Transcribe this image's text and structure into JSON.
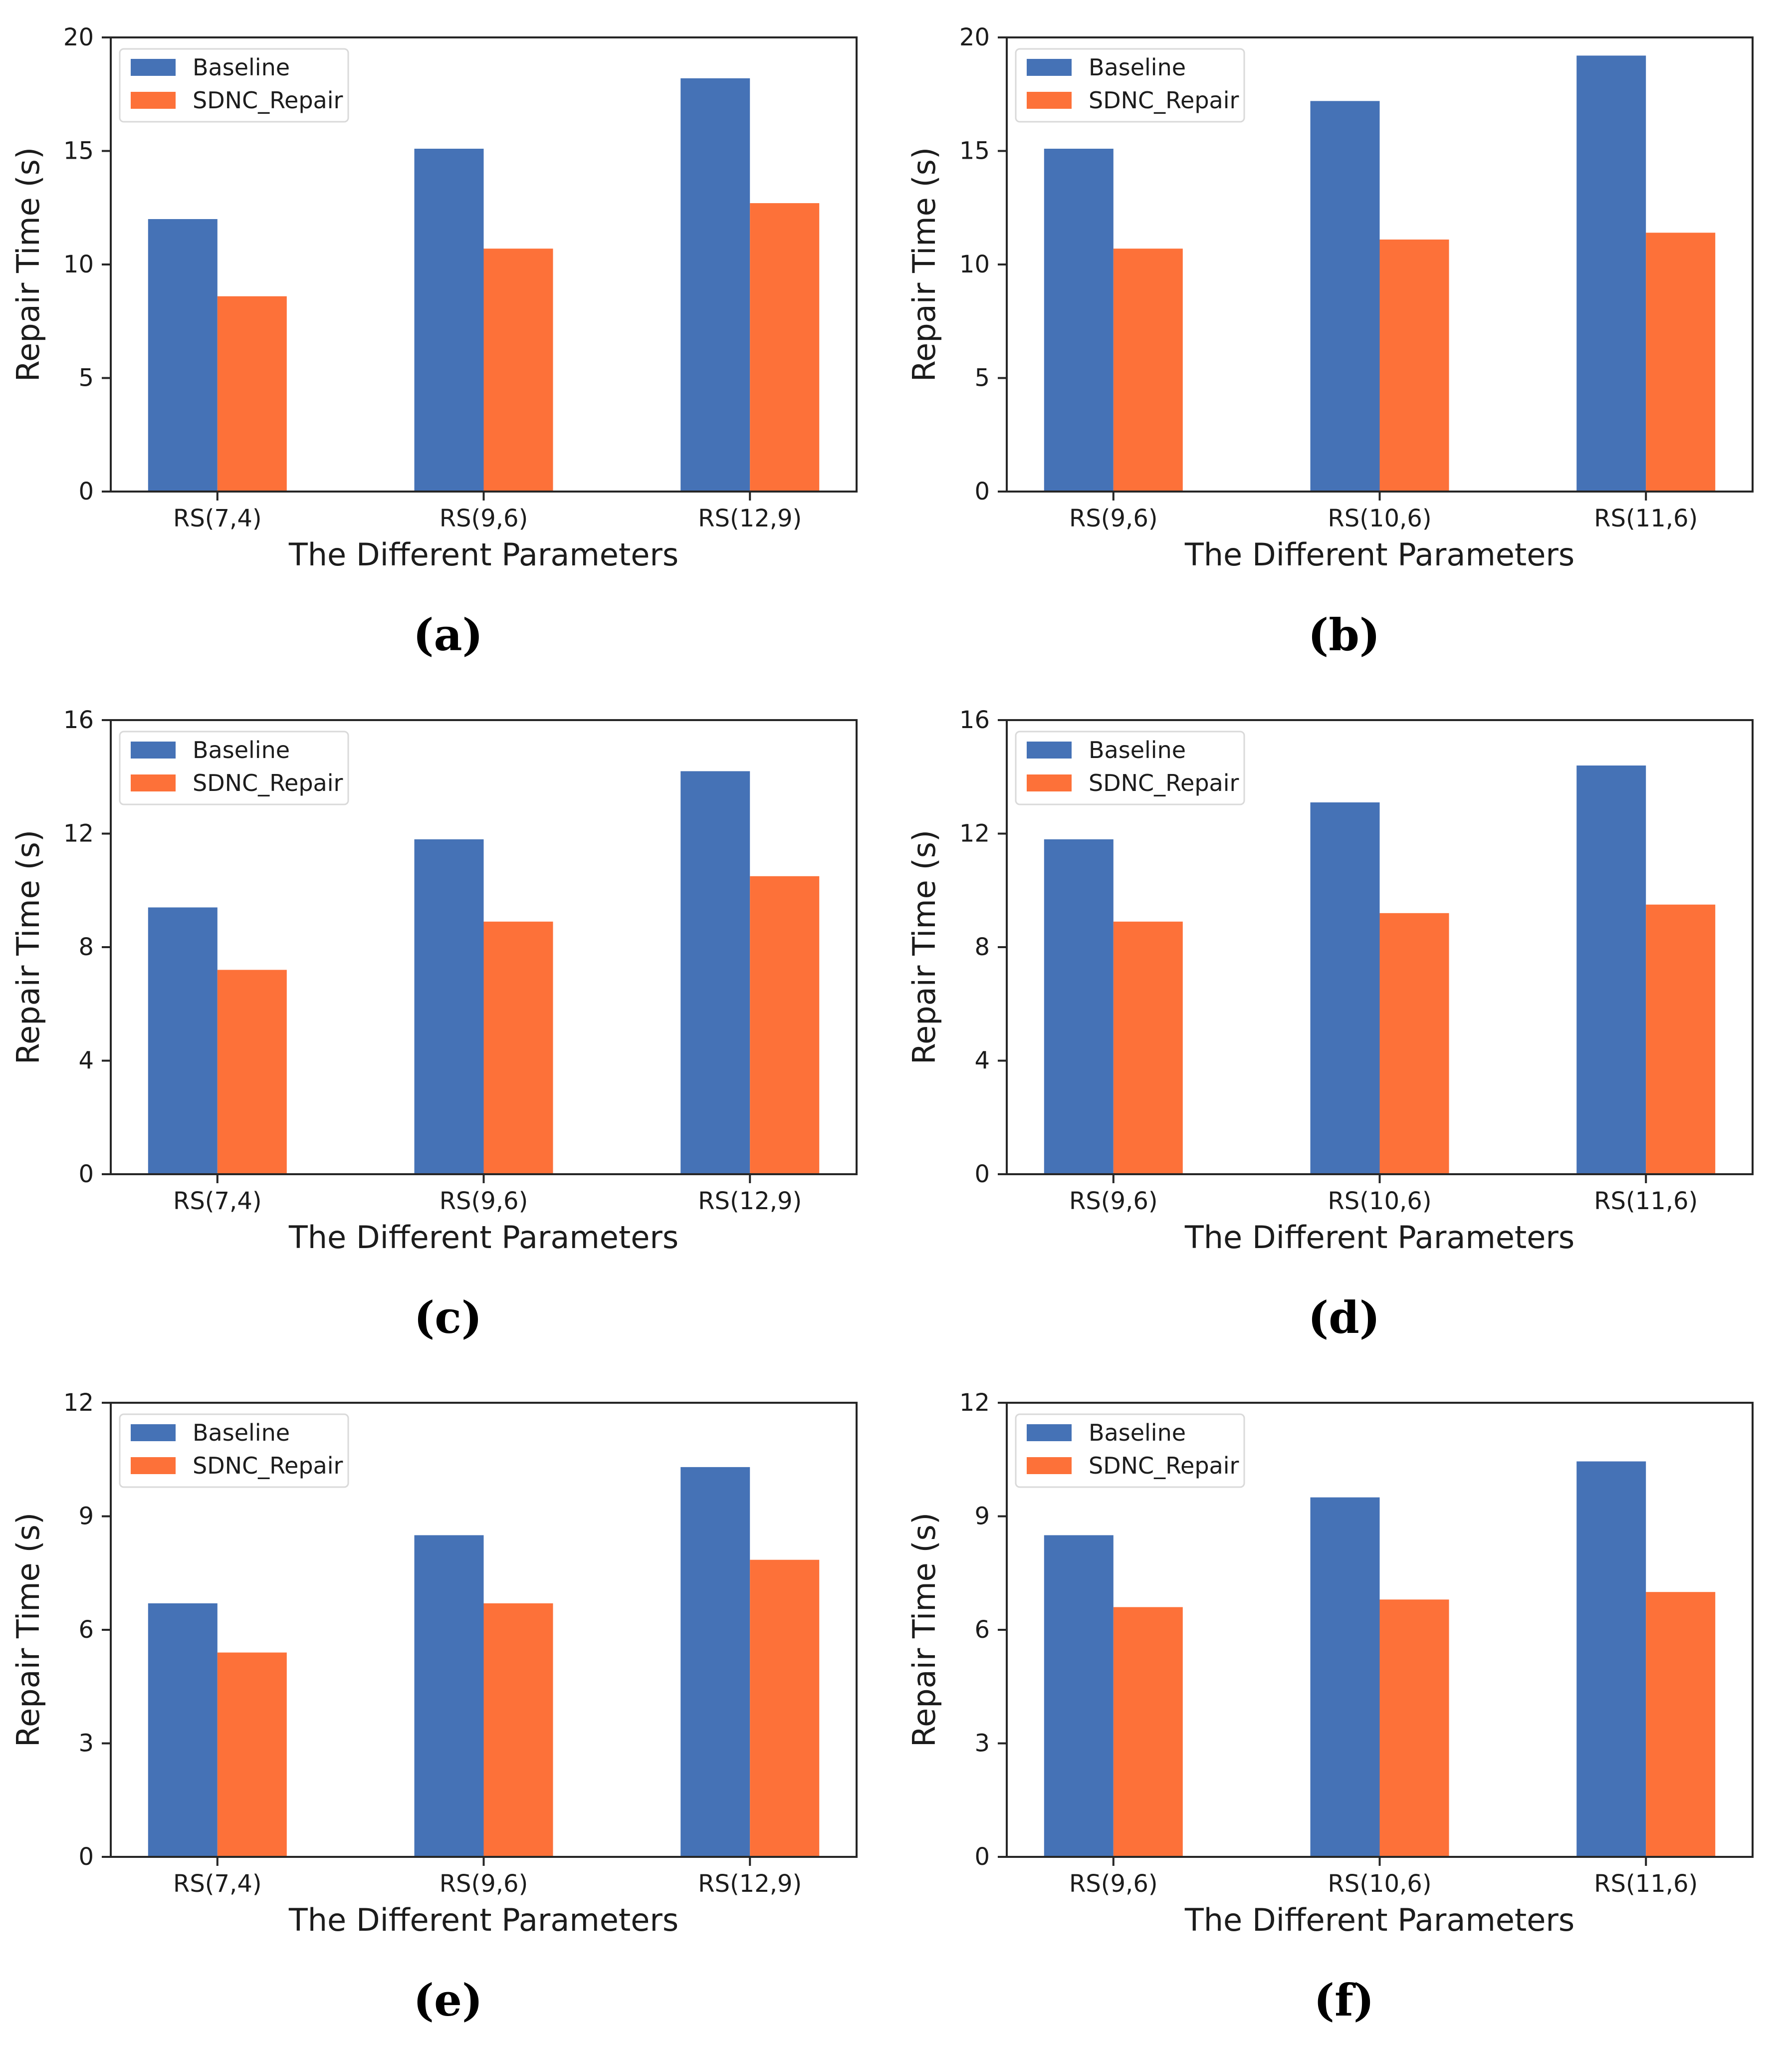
{
  "page": {
    "background": "#ffffff"
  },
  "colors": {
    "baseline_bar": "#4572B6",
    "sdnc_bar": "#FD7139",
    "spine": "#262626",
    "text": "#1c1c1c",
    "legend_border": "#d9d9d9",
    "legend_background": "#ffffff"
  },
  "chart_data": [
    {
      "id": "a",
      "caption": "(a)",
      "type": "bar",
      "title": "",
      "xlabel": "The Different Parameters",
      "ylabel": "Repair Time (s)",
      "categories": [
        "RS(7,4)",
        "RS(9,6)",
        "RS(12,9)"
      ],
      "series": [
        {
          "name": "Baseline",
          "values": [
            12.0,
            15.1,
            18.2
          ]
        },
        {
          "name": "SDNC_Repair",
          "values": [
            8.6,
            10.7,
            12.7
          ]
        }
      ],
      "ylim": [
        0,
        20
      ],
      "yticks": [
        0,
        5,
        10,
        15,
        20
      ],
      "grid": false,
      "legend_position": "upper-left"
    },
    {
      "id": "b",
      "caption": "(b)",
      "type": "bar",
      "title": "",
      "xlabel": "The Different Parameters",
      "ylabel": "Repair Time (s)",
      "categories": [
        "RS(9,6)",
        "RS(10,6)",
        "RS(11,6)"
      ],
      "series": [
        {
          "name": "Baseline",
          "values": [
            15.1,
            17.2,
            19.2
          ]
        },
        {
          "name": "SDNC_Repair",
          "values": [
            10.7,
            11.1,
            11.4
          ]
        }
      ],
      "ylim": [
        0,
        20
      ],
      "yticks": [
        0,
        5,
        10,
        15,
        20
      ],
      "grid": false,
      "legend_position": "upper-left"
    },
    {
      "id": "c",
      "caption": "(c)",
      "type": "bar",
      "title": "",
      "xlabel": "The Different Parameters",
      "ylabel": "Repair Time (s)",
      "categories": [
        "RS(7,4)",
        "RS(9,6)",
        "RS(12,9)"
      ],
      "series": [
        {
          "name": "Baseline",
          "values": [
            9.4,
            11.8,
            14.2
          ]
        },
        {
          "name": "SDNC_Repair",
          "values": [
            7.2,
            8.9,
            10.5
          ]
        }
      ],
      "ylim": [
        0,
        16
      ],
      "yticks": [
        0,
        4,
        8,
        12,
        16
      ],
      "grid": false,
      "legend_position": "upper-left"
    },
    {
      "id": "d",
      "caption": "(d)",
      "type": "bar",
      "title": "",
      "xlabel": "The Different Parameters",
      "ylabel": "Repair Time (s)",
      "categories": [
        "RS(9,6)",
        "RS(10,6)",
        "RS(11,6)"
      ],
      "series": [
        {
          "name": "Baseline",
          "values": [
            11.8,
            13.1,
            14.4
          ]
        },
        {
          "name": "SDNC_Repair",
          "values": [
            8.9,
            9.2,
            9.5
          ]
        }
      ],
      "ylim": [
        0,
        16
      ],
      "yticks": [
        0,
        4,
        8,
        12,
        16
      ],
      "grid": false,
      "legend_position": "upper-left"
    },
    {
      "id": "e",
      "caption": "(e)",
      "type": "bar",
      "title": "",
      "xlabel": "The Different Parameters",
      "ylabel": "Repair Time (s)",
      "categories": [
        "RS(7,4)",
        "RS(9,6)",
        "RS(12,9)"
      ],
      "series": [
        {
          "name": "Baseline",
          "values": [
            6.7,
            8.5,
            10.3
          ]
        },
        {
          "name": "SDNC_Repair",
          "values": [
            5.4,
            6.7,
            7.85
          ]
        }
      ],
      "ylim": [
        0,
        12
      ],
      "yticks": [
        0,
        3,
        6,
        9,
        12
      ],
      "grid": false,
      "legend_position": "upper-left"
    },
    {
      "id": "f",
      "caption": "(f)",
      "type": "bar",
      "title": "",
      "xlabel": "The Different Parameters",
      "ylabel": "Repair Time (s)",
      "categories": [
        "RS(9,6)",
        "RS(10,6)",
        "RS(11,6)"
      ],
      "series": [
        {
          "name": "Baseline",
          "values": [
            8.5,
            9.5,
            10.45
          ]
        },
        {
          "name": "SDNC_Repair",
          "values": [
            6.6,
            6.8,
            7.0
          ]
        }
      ],
      "ylim": [
        0,
        12
      ],
      "yticks": [
        0,
        3,
        6,
        9,
        12
      ],
      "grid": false,
      "legend_position": "upper-left"
    }
  ]
}
